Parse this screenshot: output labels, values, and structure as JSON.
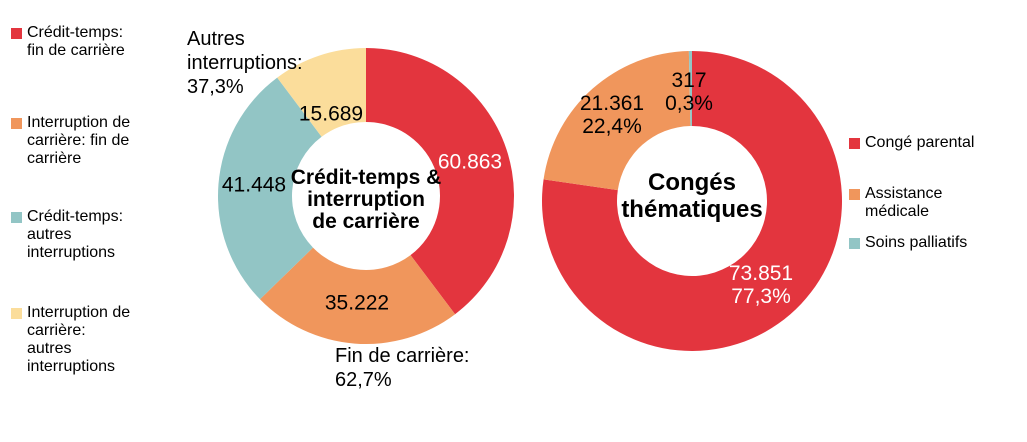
{
  "colors": {
    "red": "#E3353E",
    "orange": "#F0965C",
    "teal": "#92C5C5",
    "yellow": "#FBDD9B",
    "background": "#FFFFFF",
    "label_dark": "#000000",
    "label_light": "#FFFFFF"
  },
  "legend_left": {
    "items": [
      {
        "label": "Crédit-temps:\nfin de carrière",
        "color": "#E3353E"
      },
      {
        "label": "Interruption de\ncarrière: fin de\ncarrière",
        "color": "#F0965C"
      },
      {
        "label": "Crédit-temps:\nautres\ninterruptions",
        "color": "#92C5C5"
      },
      {
        "label": "Interruption de\ncarrière:\nautres\ninterruptions",
        "color": "#FBDD9B"
      }
    ]
  },
  "legend_right": {
    "items": [
      {
        "label": "Congé parental",
        "color": "#E3353E"
      },
      {
        "label": "Assistance\nmédicale",
        "color": "#F0965C"
      },
      {
        "label": "Soins palliatifs",
        "color": "#92C5C5"
      }
    ]
  },
  "chart_data": [
    {
      "type": "pie",
      "subtype": "donut",
      "title": "Crédit-temps &\ninterruption\nde carrière",
      "start_angle_deg": 0,
      "direction": "clockwise",
      "slices": [
        {
          "name": "Crédit-temps: fin de carrière",
          "value": 60863,
          "label": "60.863",
          "color": "#E3353E",
          "label_color": "white"
        },
        {
          "name": "Interruption de carrière: fin de carrière",
          "value": 35222,
          "label": "35.222",
          "color": "#F0965C",
          "label_color": "black"
        },
        {
          "name": "Crédit-temps: autres interruptions",
          "value": 41448,
          "label": "41.448",
          "color": "#92C5C5",
          "label_color": "black"
        },
        {
          "name": "Interruption de carrière: autres interruptions",
          "value": 15689,
          "label": "15.689",
          "color": "#FBDD9B",
          "label_color": "black"
        }
      ],
      "annotations": {
        "top_left": "Autres\ninterruptions:\n37,3%",
        "bottom": "Fin de carrière:\n62,7%"
      }
    },
    {
      "type": "pie",
      "subtype": "donut",
      "title": "Congés\nthématiques",
      "start_angle_deg": 0,
      "direction": "clockwise",
      "slices": [
        {
          "name": "Congé parental",
          "value": 73851,
          "label": "73.851\n77,3%",
          "color": "#E3353E",
          "label_color": "white"
        },
        {
          "name": "Assistance médicale",
          "value": 21361,
          "label": "21.361\n22,4%",
          "color": "#F0965C",
          "label_color": "black"
        },
        {
          "name": "Soins palliatifs",
          "value": 317,
          "label": "317\n0,3%",
          "color": "#92C5C5",
          "label_color": "black"
        }
      ]
    }
  ]
}
